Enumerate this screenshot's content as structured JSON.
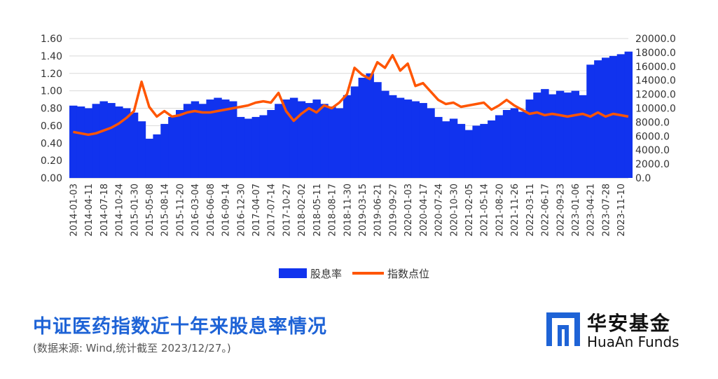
{
  "chart_data": {
    "type": "bar+line",
    "title": "",
    "legend": {
      "position": "bottom-center"
    },
    "left_axis": {
      "ylim": [
        0,
        1.6
      ],
      "ticks": [
        "0.00",
        "0.20",
        "0.40",
        "0.60",
        "0.80",
        "1.00",
        "1.20",
        "1.40",
        "1.60"
      ]
    },
    "right_axis": {
      "ylim": [
        0,
        20000
      ],
      "ticks": [
        "0.0",
        "2000.0",
        "4000.0",
        "6000.0",
        "8000.0",
        "10000.0",
        "12000.0",
        "14000.0",
        "16000.0",
        "18000.0",
        "20000.0"
      ]
    },
    "x_tick_labels": [
      "2014-01-03",
      "2014-04-11",
      "2014-07-18",
      "2014-10-24",
      "2015-01-30",
      "2015-05-08",
      "2015-08-14",
      "2015-11-20",
      "2016-03-04",
      "2016-06-08",
      "2016-09-14",
      "2016-12-30",
      "2017-04-07",
      "2017-07-14",
      "2017-10-27",
      "2018-02-02",
      "2018-05-11",
      "2018-08-17",
      "2018-11-30",
      "2019-03-15",
      "2019-06-21",
      "2019-09-27",
      "2020-01-03",
      "2020-04-17",
      "2020-07-24",
      "2020-10-30",
      "2021-02-05",
      "2021-05-14",
      "2021-08-20",
      "2021-11-26",
      "2022-03-11",
      "2022-06-17",
      "2022-09-23",
      "2023-01-06",
      "2023-04-21",
      "2023-07-28",
      "2023-11-10"
    ],
    "x": [
      0,
      0.5,
      1,
      1.5,
      2,
      2.5,
      3,
      3.5,
      4,
      4.5,
      5,
      5.5,
      6,
      6.5,
      7,
      7.5,
      8,
      8.5,
      9,
      9.5,
      10,
      10.5,
      11,
      11.5,
      12,
      12.5,
      13,
      13.5,
      14,
      14.5,
      15,
      15.5,
      16,
      16.5,
      17,
      17.5,
      18,
      18.5,
      19,
      19.5,
      20,
      20.5,
      21,
      21.5,
      22,
      22.5,
      23,
      23.5,
      24,
      24.5,
      25,
      25.5,
      26,
      26.5,
      27,
      27.5,
      28,
      28.5,
      29,
      29.5,
      30,
      30.5,
      31,
      31.5,
      32,
      32.5,
      33,
      33.5,
      34,
      34.5,
      35,
      35.5,
      36,
      36.5
    ],
    "series": [
      {
        "name": "股息率",
        "type": "bar",
        "axis": "left",
        "color": "#1133EE",
        "values": [
          0.83,
          0.82,
          0.8,
          0.85,
          0.88,
          0.86,
          0.82,
          0.8,
          0.75,
          0.65,
          0.45,
          0.5,
          0.62,
          0.7,
          0.78,
          0.85,
          0.88,
          0.85,
          0.9,
          0.92,
          0.9,
          0.88,
          0.7,
          0.68,
          0.7,
          0.72,
          0.78,
          0.85,
          0.9,
          0.92,
          0.88,
          0.86,
          0.9,
          0.85,
          0.82,
          0.8,
          0.95,
          1.05,
          1.15,
          1.2,
          1.1,
          1.0,
          0.95,
          0.92,
          0.9,
          0.88,
          0.86,
          0.8,
          0.7,
          0.65,
          0.68,
          0.62,
          0.55,
          0.6,
          0.62,
          0.66,
          0.72,
          0.78,
          0.8,
          0.76,
          0.9,
          0.98,
          1.02,
          0.96,
          1.0,
          0.98,
          1.0,
          0.95,
          1.3,
          1.35,
          1.38,
          1.4,
          1.42,
          1.45
        ]
      },
      {
        "name": "指数点位",
        "type": "line",
        "axis": "right",
        "color": "#FF5500",
        "values": [
          6600,
          6400,
          6200,
          6400,
          6800,
          7200,
          7800,
          8600,
          9600,
          13800,
          10200,
          8800,
          9600,
          8800,
          9000,
          9400,
          9600,
          9400,
          9400,
          9600,
          9800,
          10000,
          10200,
          10400,
          10800,
          11000,
          10800,
          12200,
          9600,
          8200,
          9200,
          10000,
          9400,
          10400,
          10000,
          10800,
          12000,
          15800,
          14800,
          14200,
          16600,
          15800,
          17600,
          15400,
          16400,
          13200,
          13600,
          12400,
          11200,
          10600,
          10800,
          10200,
          10400,
          10600,
          10800,
          9800,
          10400,
          11200,
          10400,
          9800,
          9200,
          9400,
          9000,
          9200,
          9000,
          8800,
          9000,
          9200,
          8800,
          9400,
          8800,
          9200,
          9000,
          8800
        ]
      }
    ]
  },
  "footer": {
    "title": "中证医药指数近十年来股息率情况",
    "source": "(数据来源: Wind,统计截至 2023/12/27。)"
  },
  "logo": {
    "cn": "华安基金",
    "en": "HuaAn Funds"
  },
  "colors": {
    "title": "#1E63D6",
    "bar": "#1133EE",
    "line": "#FF5500"
  }
}
